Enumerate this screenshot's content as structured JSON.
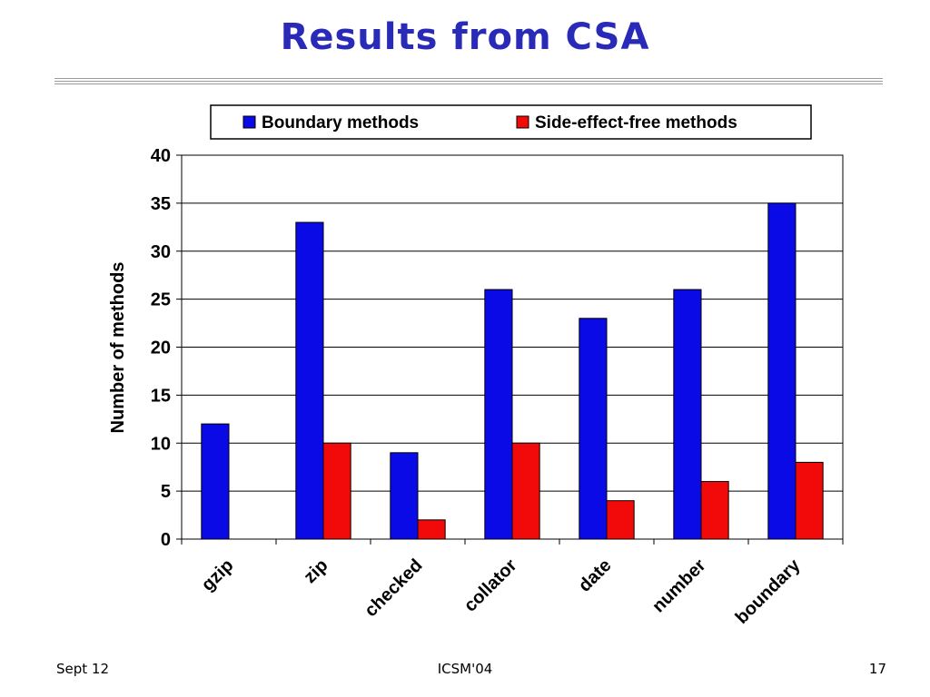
{
  "slide": {
    "title": "Results from CSA",
    "footer_left": "Sept 12",
    "footer_center": "ICSM'04",
    "footer_right": "17"
  },
  "colors": {
    "title": "#2a2ab8",
    "boundary": "#0a0ae6",
    "sideeffect": "#f20a0a"
  },
  "chart_data": {
    "type": "bar",
    "title": "",
    "xlabel": "",
    "ylabel": "Number of methods",
    "ylim": [
      0,
      40
    ],
    "yticks": [
      0,
      5,
      10,
      15,
      20,
      25,
      30,
      35,
      40
    ],
    "grid": true,
    "legend": "top",
    "categories": [
      "gzip",
      "zip",
      "checked",
      "collator",
      "date",
      "number",
      "boundary"
    ],
    "series": [
      {
        "name": "Boundary methods",
        "color": "#0a0ae6",
        "values": [
          12,
          33,
          9,
          26,
          23,
          26,
          35
        ]
      },
      {
        "name": "Side-effect-free methods",
        "color": "#f20a0a",
        "values": [
          0,
          10,
          2,
          10,
          4,
          6,
          8
        ]
      }
    ]
  }
}
